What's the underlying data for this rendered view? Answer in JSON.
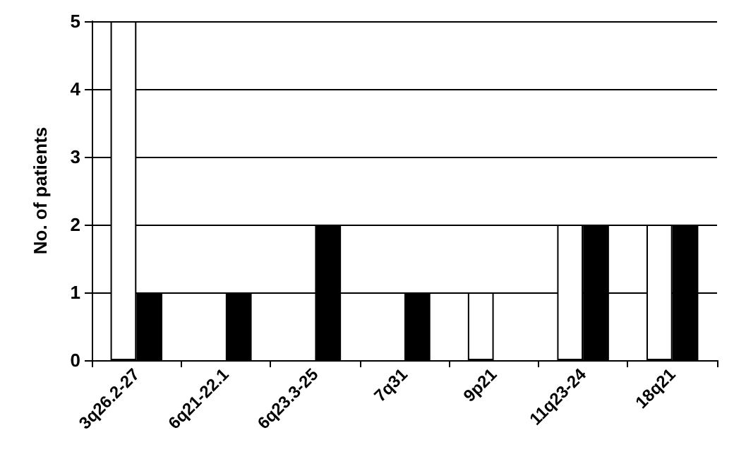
{
  "chart_data": {
    "type": "bar",
    "ylabel": "No. of patients",
    "categories": [
      "3q26.2-27",
      "6q21-22.1",
      "6q23.3-25",
      "7q31",
      "9p21",
      "11q23-24",
      "18q21"
    ],
    "series": [
      {
        "color": "#ffffff",
        "values": [
          5,
          0,
          0,
          0,
          1,
          2,
          2
        ]
      },
      {
        "color": "#000000",
        "values": [
          1,
          1,
          2,
          1,
          0,
          2,
          2
        ]
      }
    ],
    "ylim": [
      0,
      5
    ],
    "yticks": [
      0,
      1,
      2,
      3,
      4,
      5
    ],
    "grid": "y"
  }
}
